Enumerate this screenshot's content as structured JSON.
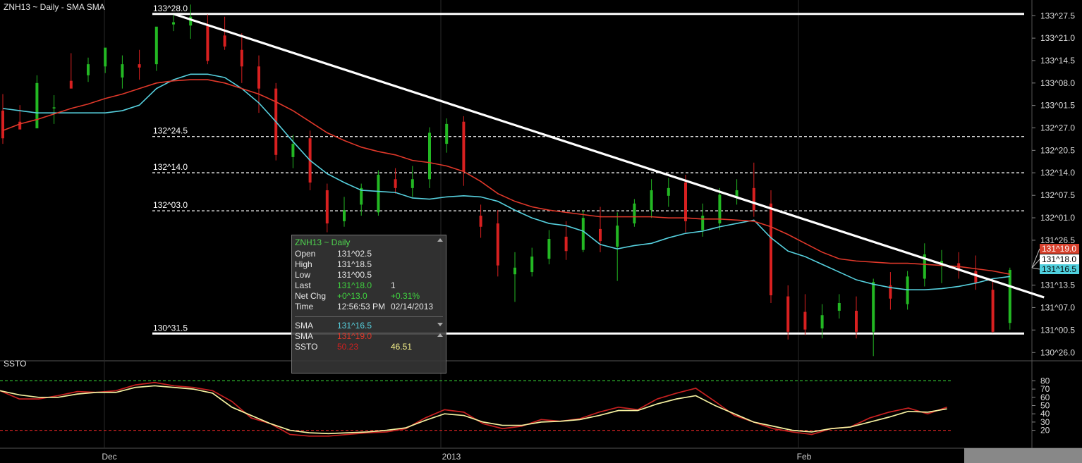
{
  "header": {
    "title": "ZNH13 ~ Daily  -  SMA SMA"
  },
  "lower_panel": {
    "label": "SSTO"
  },
  "tooltip": {
    "title": "ZNH13 ~ Daily",
    "rows": [
      {
        "k": "Open",
        "v1": "131^02.5",
        "v2": "",
        "c1": "#e6e6e6",
        "c2": "#e6e6e6"
      },
      {
        "k": "High",
        "v1": "131^18.5",
        "v2": "",
        "c1": "#e6e6e6",
        "c2": "#e6e6e6"
      },
      {
        "k": "Low",
        "v1": "131^00.5",
        "v2": "",
        "c1": "#e6e6e6",
        "c2": "#e6e6e6"
      },
      {
        "k": "Last",
        "v1": "131^18.0",
        "v2": "1",
        "c1": "#3fd33f",
        "c2": "#e6e6e6"
      },
      {
        "k": "Net Chg",
        "v1": "+0^13.0",
        "v2": "+0.31%",
        "c1": "#3fd33f",
        "c2": "#3fd33f"
      },
      {
        "k": "Time",
        "v1": "12:56:53 PM",
        "v2": "02/14/2013",
        "c1": "#e6e6e6",
        "c2": "#e6e6e6"
      }
    ],
    "rows2": [
      {
        "k": "SMA",
        "v1": "131^16.5",
        "v2": "",
        "c1": "#56d0de",
        "c2": "#e6e6e6"
      },
      {
        "k": "SMA",
        "v1": "131^19.0",
        "v2": "",
        "c1": "#e0382a",
        "c2": "#e6e6e6"
      },
      {
        "k": "SSTO",
        "v1": "50.23",
        "v2": "46.51",
        "c1": "#d02020",
        "c2": "#f5f08a"
      }
    ]
  },
  "chart_data": {
    "type": "candlestick",
    "symbol": "ZNH13",
    "interval": "Daily",
    "price_axis": {
      "ticks": [
        "133^27.5",
        "133^21.0",
        "133^14.5",
        "133^08.0",
        "133^01.5",
        "132^27.0",
        "132^20.5",
        "132^14.0",
        "132^07.5",
        "132^01.0",
        "131^26.5",
        "131^13.5",
        "131^07.0",
        "131^00.5",
        "130^26.0"
      ],
      "min": 130.75,
      "max": 133.95
    },
    "date_labels": [
      "Dec",
      "2013",
      "Feb"
    ],
    "levels": [
      {
        "label": "133^28.0",
        "value": 133.875,
        "style": "solid"
      },
      {
        "label": "132^24.5",
        "value": 132.766,
        "style": "dashed"
      },
      {
        "label": "132^14.0",
        "value": 132.438,
        "style": "dashed"
      },
      {
        "label": "132^03.0",
        "value": 132.094,
        "style": "dashed"
      },
      {
        "label": "130^31.5",
        "value": 130.984,
        "style": "solid"
      }
    ],
    "price_badges": [
      {
        "text": "131^19.0",
        "bg": "#d8422e",
        "fg": "#ffffff",
        "value": 131.594
      },
      {
        "text": "131^18.0",
        "bg": "#ffffff",
        "fg": "#000000",
        "value": 131.5625
      },
      {
        "text": "131^16.5",
        "bg": "#4fd0de",
        "fg": "#000000",
        "value": 131.516
      }
    ],
    "trendline": {
      "from": {
        "bar": 10,
        "value": 133.875
      },
      "to": {
        "bar": 56,
        "value": 131.5625
      },
      "extend_to_bar": 61
    },
    "candles": [
      [
        133.0,
        133.15,
        132.75,
        132.7
      ],
      [
        132.9,
        133.05,
        132.83,
        132.85
      ],
      [
        132.84,
        133.32,
        133.25,
        132.98
      ],
      [
        133.02,
        133.14,
        133.03,
        132.88
      ],
      [
        133.27,
        133.52,
        133.2,
        133.25
      ],
      [
        133.32,
        133.48,
        133.42,
        133.26
      ],
      [
        133.4,
        133.56,
        133.57,
        133.34
      ],
      [
        133.3,
        133.5,
        133.42,
        133.2
      ],
      [
        133.42,
        133.55,
        133.39,
        133.28
      ],
      [
        133.42,
        133.75,
        133.76,
        133.36
      ],
      [
        133.78,
        133.87,
        133.8,
        133.72
      ],
      [
        133.77,
        133.96,
        133.85,
        133.65
      ],
      [
        133.78,
        133.87,
        133.45,
        133.42
      ],
      [
        133.68,
        133.85,
        133.58,
        133.55
      ],
      [
        133.55,
        133.7,
        133.4,
        133.25
      ],
      [
        133.4,
        133.5,
        133.2,
        132.98
      ],
      [
        133.2,
        133.25,
        132.6,
        132.55
      ],
      [
        132.58,
        132.78,
        132.7,
        132.48
      ],
      [
        132.75,
        132.82,
        132.35,
        132.28
      ],
      [
        132.28,
        132.34,
        131.98,
        131.9
      ],
      [
        132.0,
        132.22,
        132.1,
        131.95
      ],
      [
        132.15,
        132.34,
        132.3,
        132.05
      ],
      [
        132.08,
        132.46,
        132.42,
        132.05
      ],
      [
        132.38,
        132.48,
        132.3,
        132.25
      ],
      [
        132.3,
        132.5,
        132.38,
        132.22
      ],
      [
        132.38,
        132.85,
        132.8,
        132.3
      ],
      [
        132.7,
        132.93,
        132.88,
        132.62
      ],
      [
        132.9,
        132.95,
        132.45,
        132.32
      ],
      [
        132.05,
        132.15,
        131.95,
        131.85
      ],
      [
        131.98,
        132.1,
        131.6,
        131.5
      ],
      [
        131.52,
        131.72,
        131.58,
        131.27
      ],
      [
        131.54,
        131.76,
        131.68,
        131.5
      ],
      [
        131.66,
        131.92,
        131.84,
        131.61
      ],
      [
        131.86,
        132.0,
        131.73,
        131.65
      ],
      [
        131.74,
        132.1,
        132.03,
        131.72
      ],
      [
        131.93,
        132.13,
        131.82,
        131.72
      ],
      [
        131.77,
        132.08,
        131.96,
        131.46
      ],
      [
        131.98,
        132.2,
        132.16,
        131.95
      ],
      [
        132.1,
        132.38,
        132.28,
        132.03
      ],
      [
        132.23,
        132.39,
        132.3,
        132.13
      ],
      [
        132.35,
        132.42,
        132.0,
        131.9
      ],
      [
        131.92,
        132.16,
        132.05,
        131.86
      ],
      [
        131.98,
        132.3,
        132.24,
        131.92
      ],
      [
        132.22,
        132.38,
        132.28,
        132.15
      ],
      [
        132.3,
        132.53,
        132.1,
        132.04
      ],
      [
        132.16,
        132.28,
        131.33,
        131.26
      ],
      [
        131.32,
        131.42,
        131.0,
        130.93
      ],
      [
        131.18,
        131.34,
        131.02,
        130.97
      ],
      [
        131.03,
        131.25,
        131.15,
        130.94
      ],
      [
        131.19,
        131.34,
        131.26,
        131.12
      ],
      [
        131.19,
        131.32,
        131.0,
        130.94
      ],
      [
        131.0,
        131.48,
        131.45,
        130.78
      ],
      [
        131.42,
        131.54,
        131.3,
        131.2
      ],
      [
        131.25,
        131.55,
        131.5,
        131.2
      ],
      [
        131.48,
        131.8,
        131.7,
        131.41
      ],
      [
        131.62,
        131.74,
        131.64,
        131.44
      ],
      [
        131.62,
        131.72,
        131.56,
        131.48
      ],
      [
        131.55,
        131.69,
        131.44,
        131.38
      ],
      [
        131.38,
        131.48,
        131.0,
        130.99
      ],
      [
        131.08,
        131.58,
        131.56,
        131.02
      ]
    ],
    "series": [
      {
        "name": "SMA",
        "color": "#56d0de",
        "values": [
          133.02,
          133.0,
          132.98,
          132.98,
          132.98,
          132.98,
          132.98,
          133.0,
          133.05,
          133.2,
          133.28,
          133.33,
          133.33,
          133.3,
          133.2,
          133.07,
          132.9,
          132.72,
          132.55,
          132.43,
          132.35,
          132.28,
          132.27,
          132.26,
          132.21,
          132.2,
          132.22,
          132.23,
          132.22,
          132.18,
          132.1,
          132.03,
          131.98,
          131.96,
          131.91,
          131.79,
          131.75,
          131.78,
          131.8,
          131.85,
          131.89,
          131.91,
          131.95,
          131.98,
          132.01,
          131.85,
          131.73,
          131.68,
          131.61,
          131.54,
          131.47,
          131.43,
          131.4,
          131.38,
          131.38,
          131.39,
          131.41,
          131.44,
          131.48,
          131.5
        ]
      },
      {
        "name": "SMA",
        "color": "#e0382a",
        "values": [
          132.82,
          132.88,
          132.92,
          132.97,
          133.02,
          133.06,
          133.11,
          133.15,
          133.2,
          133.25,
          133.27,
          133.28,
          133.28,
          133.25,
          133.2,
          133.15,
          133.08,
          133.0,
          132.9,
          132.8,
          132.73,
          132.67,
          132.63,
          132.6,
          132.55,
          132.53,
          132.5,
          132.45,
          132.36,
          132.25,
          132.18,
          132.13,
          132.1,
          132.08,
          132.06,
          132.04,
          132.04,
          132.04,
          132.04,
          132.03,
          132.03,
          132.02,
          132.02,
          132.01,
          132.0,
          131.95,
          131.88,
          131.8,
          131.72,
          131.66,
          131.64,
          131.63,
          131.62,
          131.62,
          131.61,
          131.6,
          131.59,
          131.57,
          131.55,
          131.52
        ]
      },
      {
        "name": "SSTO",
        "color": "#c82020",
        "values": [
          68,
          58,
          58,
          62,
          67,
          66,
          68,
          75,
          78,
          74,
          72,
          68,
          55,
          35,
          28,
          15,
          13,
          13,
          15,
          17,
          18,
          22,
          35,
          45,
          42,
          28,
          22,
          25,
          33,
          31,
          34,
          42,
          48,
          45,
          58,
          65,
          71,
          55,
          38,
          30,
          22,
          18,
          15,
          22,
          24,
          35,
          42,
          47,
          40,
          48
        ]
      },
      {
        "name": "SSTO",
        "color": "#f5f0a0",
        "values": [
          68,
          63,
          60,
          60,
          64,
          66,
          66,
          72,
          74,
          72,
          70,
          65,
          48,
          38,
          28,
          20,
          17,
          16,
          17,
          18,
          20,
          23,
          32,
          40,
          38,
          30,
          26,
          26,
          30,
          31,
          33,
          38,
          44,
          44,
          52,
          58,
          62,
          50,
          40,
          30,
          25,
          20,
          18,
          22,
          24,
          30,
          36,
          43,
          42,
          46
        ]
      }
    ],
    "ssto_axis": {
      "ticks": [
        "80",
        "70",
        "60",
        "50",
        "40",
        "30",
        "20"
      ],
      "levels": [
        80,
        20
      ]
    }
  }
}
